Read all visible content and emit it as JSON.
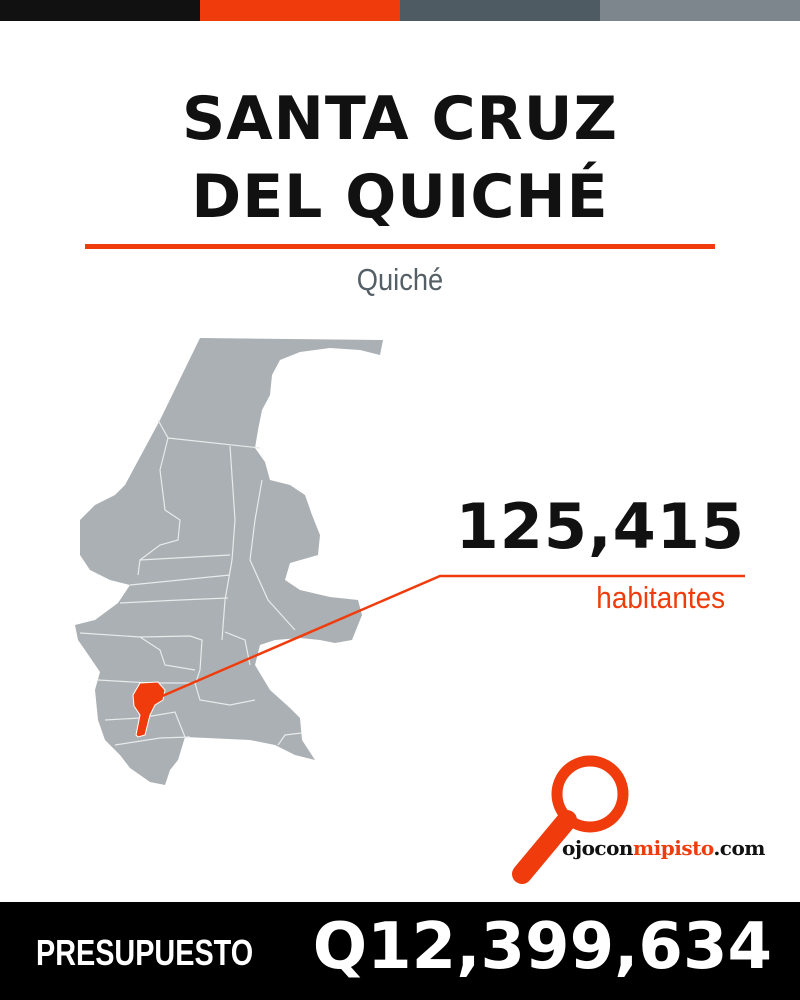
{
  "colors": {
    "black": "#111111",
    "orange": "#f03c0c",
    "slate": "#4e5b63",
    "gray": "#7d868c",
    "map_fill": "#aab0b3"
  },
  "header": {
    "title_line1": "SANTA CRUZ",
    "title_line2": "DEL QUICHÉ",
    "department": "Quiché"
  },
  "stats": {
    "population": "125,415",
    "population_label": "habitantes"
  },
  "logo": {
    "part1": "ojocon",
    "part2": "mipisto",
    "part3": ".com"
  },
  "footer": {
    "label": "PRESUPUESTO",
    "value": "Q12,399,634"
  }
}
